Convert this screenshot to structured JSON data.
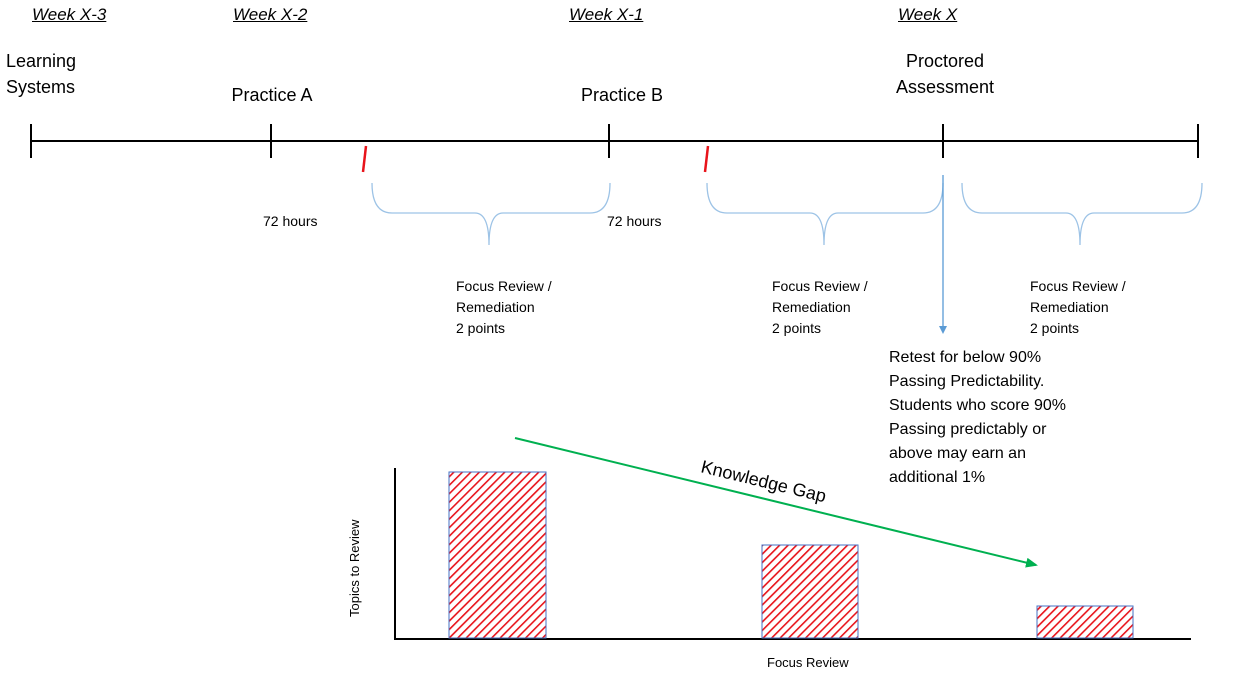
{
  "weeks": [
    {
      "id": "x3",
      "label": "Week X-3"
    },
    {
      "id": "x2",
      "label": "Week X-2"
    },
    {
      "id": "x1",
      "label": "Week X-1"
    },
    {
      "id": "x0",
      "label": "Week X"
    }
  ],
  "milestones": {
    "learning_systems": [
      "Learning",
      "Systems"
    ],
    "practice_a": "Practice A",
    "practice_b": "Practice B",
    "proctored": [
      "Proctored",
      "Assessment"
    ]
  },
  "wait_label": "72 hours",
  "focus_review_lines": [
    "Focus Review /",
    "Remediation",
    "2 points"
  ],
  "retest_lines": [
    "Retest for below 90%",
    "Passing Predictability.",
    "Students who score 90%",
    "Passing predictably or",
    "above may earn an",
    "additional 1%"
  ],
  "trend_label": "Knowledge Gap",
  "chart": {
    "ylabel": "Topics to Review",
    "xlabel": "Focus Review",
    "bars": [
      {
        "id": "after-practice-a",
        "value": 1.0
      },
      {
        "id": "after-practice-b",
        "value": 0.56
      },
      {
        "id": "after-proctored",
        "value": 0.19
      }
    ]
  },
  "colors": {
    "timeline": "#000000",
    "red_tick": "#e8141b",
    "brace": "#9dc3e6",
    "arrow_blue": "#5b9bd5",
    "trend_green": "#00b050",
    "bar_hatch": "#e8141b",
    "bar_border": "#4472c4"
  }
}
